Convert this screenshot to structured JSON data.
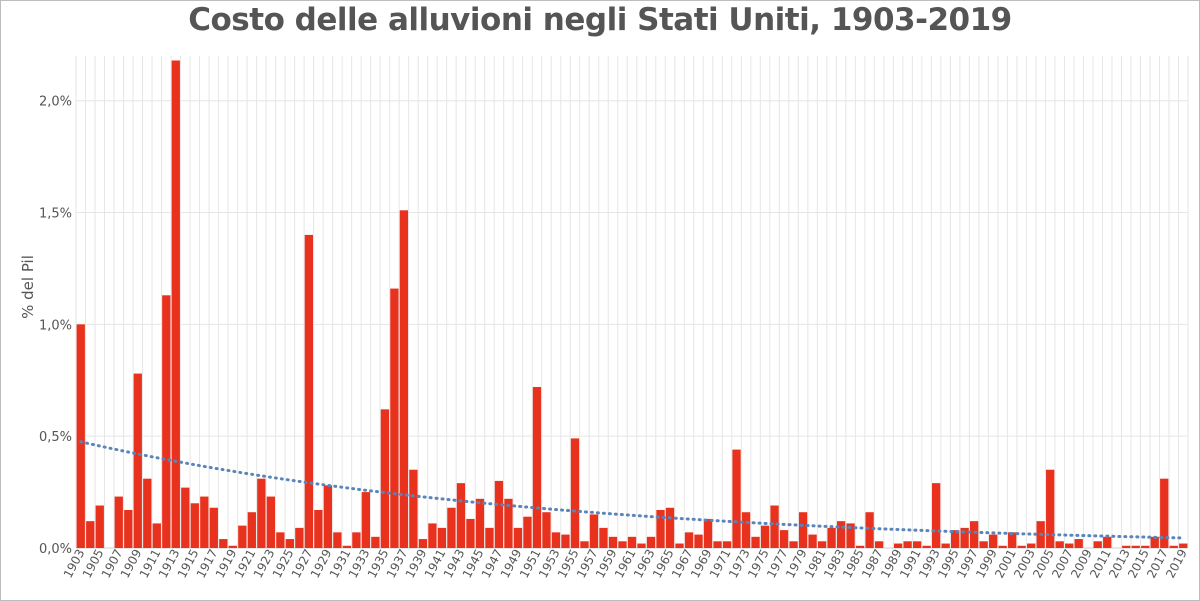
{
  "chart_data": {
    "type": "bar",
    "title": "Costo delle alluvioni negli Stati Uniti, 1903-2019",
    "ylabel": "% del Pil",
    "xlabel": "",
    "ylim": [
      0,
      2.2
    ],
    "yticks": [
      0,
      0.5,
      1.0,
      1.5,
      2.0
    ],
    "ytick_labels": [
      "0,0%",
      "0,5%",
      "1,0%",
      "1,5%",
      "2,0%"
    ],
    "grid": true,
    "categories": [
      1903,
      1904,
      1905,
      1906,
      1907,
      1908,
      1909,
      1910,
      1911,
      1912,
      1913,
      1914,
      1915,
      1916,
      1917,
      1918,
      1919,
      1920,
      1921,
      1922,
      1923,
      1924,
      1925,
      1926,
      1927,
      1928,
      1929,
      1930,
      1931,
      1932,
      1933,
      1934,
      1935,
      1936,
      1937,
      1938,
      1939,
      1940,
      1941,
      1942,
      1943,
      1944,
      1945,
      1946,
      1947,
      1948,
      1949,
      1950,
      1951,
      1952,
      1953,
      1954,
      1955,
      1956,
      1957,
      1958,
      1959,
      1960,
      1961,
      1962,
      1963,
      1964,
      1965,
      1966,
      1967,
      1968,
      1969,
      1970,
      1971,
      1972,
      1973,
      1974,
      1975,
      1976,
      1977,
      1978,
      1979,
      1980,
      1981,
      1982,
      1983,
      1984,
      1985,
      1986,
      1987,
      1988,
      1989,
      1990,
      1991,
      1992,
      1993,
      1994,
      1995,
      1996,
      1997,
      1998,
      1999,
      2000,
      2001,
      2002,
      2003,
      2004,
      2005,
      2006,
      2007,
      2008,
      2009,
      2010,
      2011,
      2012,
      2013,
      2014,
      2015,
      2016,
      2017,
      2018,
      2019
    ],
    "xtick_labels": [
      "1903",
      "1905",
      "1907",
      "1909",
      "1911",
      "1913",
      "1915",
      "1917",
      "1919",
      "1921",
      "1923",
      "1925",
      "1927",
      "1929",
      "1931",
      "1933",
      "1935",
      "1937",
      "1939",
      "1941",
      "1943",
      "1945",
      "1947",
      "1949",
      "1951",
      "1953",
      "1955",
      "1957",
      "1959",
      "1961",
      "1963",
      "1965",
      "1967",
      "1969",
      "1971",
      "1973",
      "1975",
      "1977",
      "1979",
      "1981",
      "1983",
      "1985",
      "1987",
      "1989",
      "1991",
      "1993",
      "1995",
      "1997",
      "1999",
      "2001",
      "2003",
      "2005",
      "2007",
      "2009",
      "2011",
      "2013",
      "2015",
      "2017",
      "2019"
    ],
    "values": [
      1.0,
      0.12,
      0.19,
      0.0,
      0.23,
      0.17,
      0.78,
      0.31,
      0.11,
      1.13,
      2.18,
      0.27,
      0.2,
      0.23,
      0.18,
      0.04,
      0.01,
      0.1,
      0.16,
      0.31,
      0.23,
      0.07,
      0.04,
      0.09,
      1.4,
      0.17,
      0.28,
      0.07,
      0.01,
      0.07,
      0.25,
      0.05,
      0.62,
      1.16,
      1.51,
      0.35,
      0.04,
      0.11,
      0.09,
      0.18,
      0.29,
      0.13,
      0.22,
      0.09,
      0.3,
      0.22,
      0.09,
      0.14,
      0.72,
      0.16,
      0.07,
      0.06,
      0.49,
      0.03,
      0.15,
      0.09,
      0.05,
      0.03,
      0.05,
      0.02,
      0.05,
      0.17,
      0.18,
      0.02,
      0.07,
      0.06,
      0.13,
      0.03,
      0.03,
      0.44,
      0.16,
      0.05,
      0.1,
      0.19,
      0.08,
      0.03,
      0.16,
      0.06,
      0.03,
      0.09,
      0.12,
      0.11,
      0.01,
      0.16,
      0.03,
      0.0,
      0.02,
      0.03,
      0.03,
      0.01,
      0.29,
      0.02,
      0.08,
      0.09,
      0.12,
      0.03,
      0.06,
      0.01,
      0.07,
      0.01,
      0.02,
      0.12,
      0.35,
      0.03,
      0.02,
      0.04,
      0.0,
      0.03,
      0.05,
      0.0,
      0.01,
      0.01,
      0.01,
      0.05,
      0.31,
      0.01,
      0.02
    ],
    "trendline": {
      "type": "exponential",
      "start": 0.475,
      "end": 0.045
    },
    "colors": {
      "bar": "#e8321e",
      "trend": "#5b84b8",
      "grid": "#e6e6e6",
      "axis_text": "#555555"
    }
  }
}
